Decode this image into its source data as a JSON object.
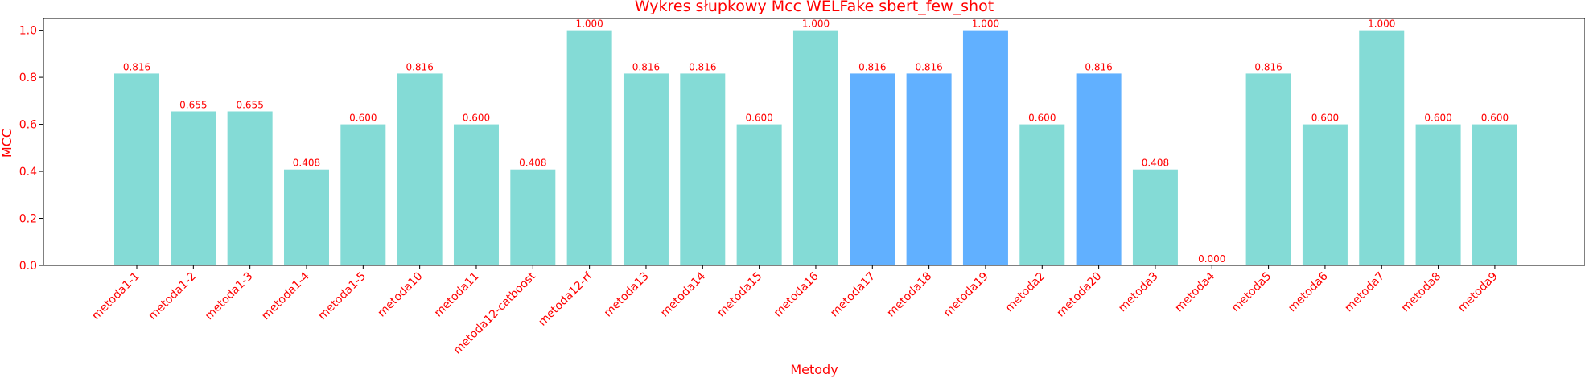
{
  "chart_data": {
    "type": "bar",
    "title": "Wykres słupkowy Mcc WELFake sbert_few_shot",
    "xlabel": "Metody",
    "ylabel": "MCC",
    "ylim": [
      0.0,
      1.05
    ],
    "yticks": [
      "0.0",
      "0.2",
      "0.4",
      "0.6",
      "0.8",
      "1.0"
    ],
    "grid": false,
    "legend": "none",
    "label_color": "#ff0000",
    "bar_colors": {
      "default": "#84dbd6",
      "highlight": "#61b0ff"
    },
    "categories": [
      "metoda1-1",
      "metoda1-2",
      "metoda1-3",
      "metoda1-4",
      "metoda1-5",
      "metoda10",
      "metoda11",
      "metoda12-catboost",
      "metoda12-rf",
      "metoda13",
      "metoda14",
      "metoda15",
      "metoda16",
      "metoda17",
      "metoda18",
      "metoda19",
      "metoda2",
      "metoda20",
      "metoda3",
      "metoda4",
      "metoda5",
      "metoda6",
      "metoda7",
      "metoda8",
      "metoda9"
    ],
    "values": [
      0.816,
      0.655,
      0.655,
      0.408,
      0.6,
      0.816,
      0.6,
      0.408,
      1.0,
      0.816,
      0.816,
      0.6,
      1.0,
      0.816,
      0.816,
      1.0,
      0.6,
      0.816,
      0.408,
      0.0,
      0.816,
      0.6,
      1.0,
      0.6,
      0.6
    ],
    "value_labels": [
      "0.816",
      "0.655",
      "0.655",
      "0.408",
      "0.600",
      "0.816",
      "0.600",
      "0.408",
      "1.000",
      "0.816",
      "0.816",
      "0.600",
      "1.000",
      "0.816",
      "0.816",
      "1.000",
      "0.600",
      "0.816",
      "0.408",
      "0.000",
      "0.816",
      "0.600",
      "1.000",
      "0.600",
      "0.600"
    ],
    "highlighted": [
      false,
      false,
      false,
      false,
      false,
      false,
      false,
      false,
      false,
      false,
      false,
      false,
      false,
      true,
      true,
      true,
      false,
      true,
      false,
      false,
      false,
      false,
      false,
      false,
      false
    ]
  }
}
